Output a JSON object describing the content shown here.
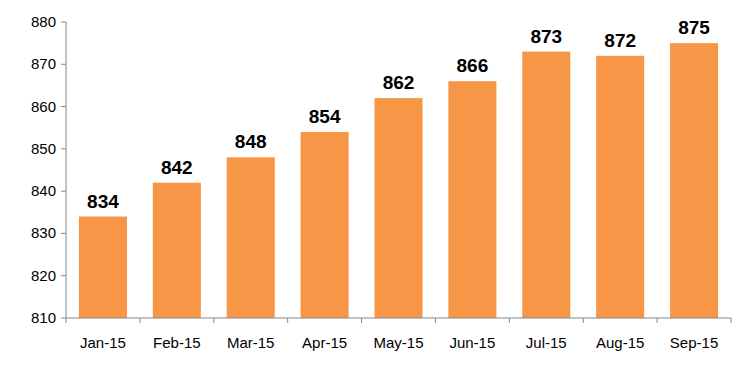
{
  "chart_data": {
    "type": "bar",
    "categories": [
      "Jan-15",
      "Feb-15",
      "Mar-15",
      "Apr-15",
      "May-15",
      "Jun-15",
      "Jul-15",
      "Aug-15",
      "Sep-15"
    ],
    "values": [
      834,
      842,
      848,
      854,
      862,
      866,
      873,
      872,
      875
    ],
    "color": "#f79646",
    "ylim": [
      810,
      880
    ],
    "yticks": [
      810,
      820,
      830,
      840,
      850,
      860,
      870,
      880
    ],
    "grid": false,
    "data_labels": true
  }
}
